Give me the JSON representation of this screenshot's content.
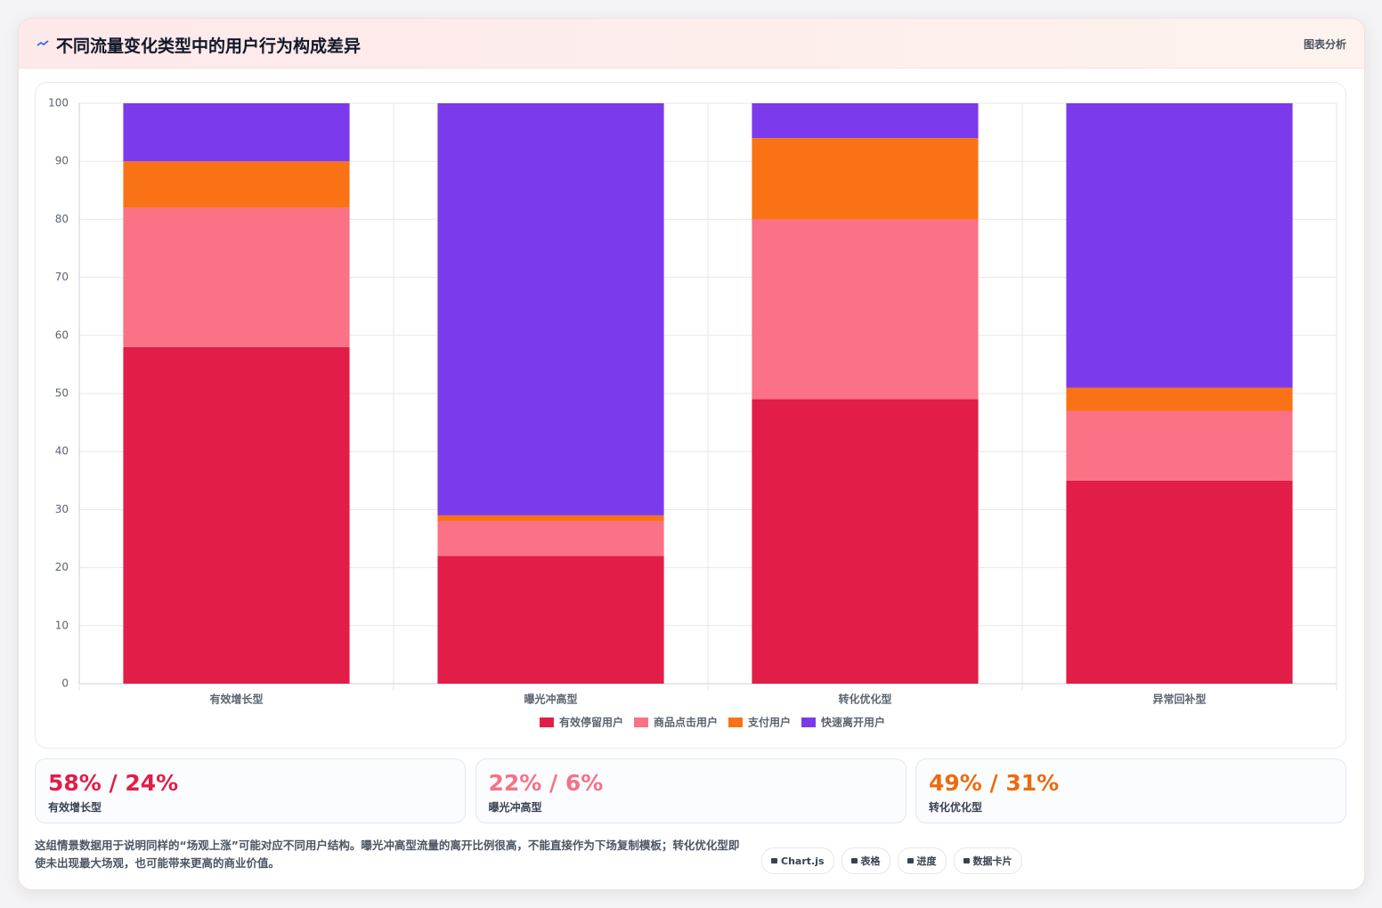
{
  "header": {
    "title": "不同流量变化类型中的用户行为构成差异",
    "badge": "图表分析"
  },
  "chart_data": {
    "type": "stacked_bar",
    "categories": [
      "有效增长型",
      "曝光冲高型",
      "转化优化型",
      "异常回补型"
    ],
    "series": [
      {
        "name": "有效停留用户",
        "color": "#e11d48",
        "values": [
          58,
          22,
          49,
          35
        ]
      },
      {
        "name": "商品点击用户",
        "color": "#fb7185",
        "values": [
          24,
          6,
          31,
          12
        ]
      },
      {
        "name": "支付用户",
        "color": "#f97316",
        "values": [
          8,
          1,
          14,
          4
        ]
      },
      {
        "name": "快速离开用户",
        "color": "#7c3aed",
        "values": [
          10,
          71,
          6,
          49
        ]
      }
    ],
    "ylim": [
      0,
      100
    ],
    "yticks": [
      0,
      10,
      20,
      30,
      40,
      50,
      60,
      70,
      80,
      90,
      100
    ],
    "grid": true,
    "legend": "bottom"
  },
  "stat_cards": [
    {
      "value": "58% / 24%",
      "label": "有效增长型",
      "color": "#e11d48"
    },
    {
      "value": "22% / 6%",
      "label": "曝光冲高型",
      "color": "#f47287"
    },
    {
      "value": "49% / 31%",
      "label": "转化优化型",
      "color": "#ea6c10"
    }
  ],
  "note": "这组情景数据用于说明同样的“场观上涨”可能对应不同用户结构。曝光冲高型流量的离开比例很高，不能直接作为下场复制模板；转化优化型即使未出现最大场观，也可能带来更高的商业价值。",
  "tags": [
    "Chart.js",
    "表格",
    "进度",
    "数据卡片"
  ]
}
